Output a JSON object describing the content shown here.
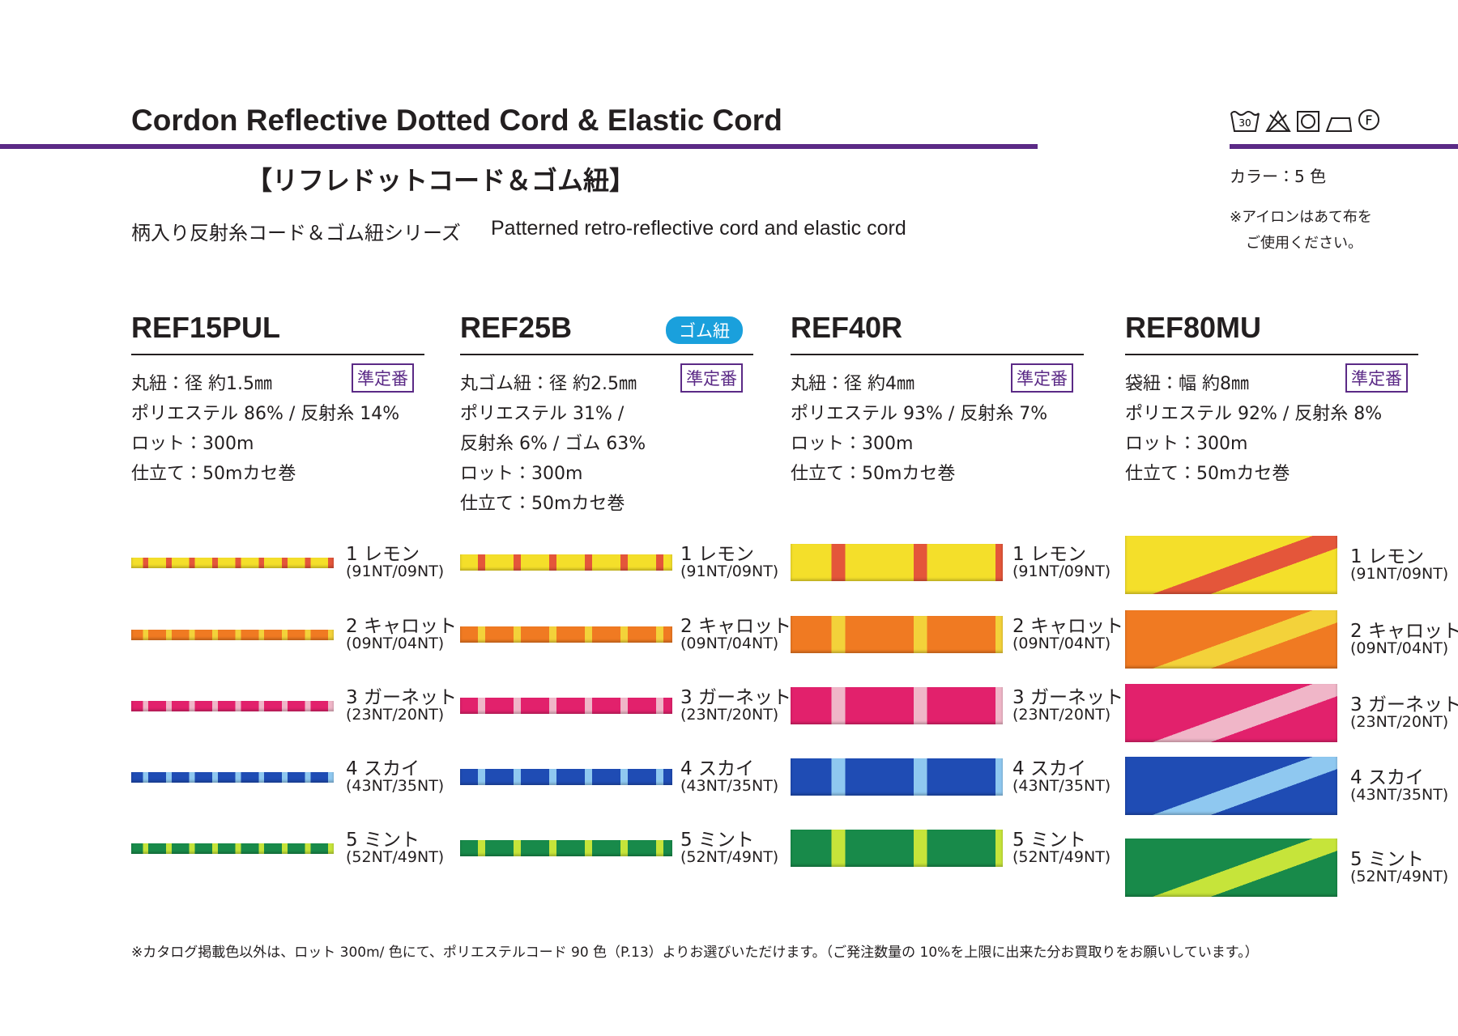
{
  "header": {
    "title": "Cordon Reflective Dotted Cord & Elastic Cord",
    "subtitle_jp": "【リフレドットコード＆ゴム紐】",
    "series_jp": "柄入り反射糸コード＆ゴム紐シリーズ",
    "series_en": "Patterned retro-reflective cord and elastic cord"
  },
  "care_labels": {
    "wash_temp": "30",
    "dry_clean": "F"
  },
  "sidebar": {
    "colors": "カラー：5 色",
    "note": [
      "※アイロンはあて布を",
      "ご使用ください。"
    ]
  },
  "products": [
    {
      "code": "REF15PUL",
      "tag": "準定番",
      "specs": [
        "丸紐：径 約1.5㎜",
        "ポリエステル 86% / 反射糸 14%",
        "ロット：300m",
        "仕立て：50mカセ巻"
      ],
      "colors": [
        {
          "name": "1 レモン",
          "code": "(91NT/09NT)"
        },
        {
          "name": "2 キャロット",
          "code": "(09NT/04NT)"
        },
        {
          "name": "3 ガーネット",
          "code": "(23NT/20NT)"
        },
        {
          "name": "4 スカイ",
          "code": "(43NT/35NT)"
        },
        {
          "name": "5 ミント",
          "code": "(52NT/49NT)"
        }
      ]
    },
    {
      "code": "REF25B",
      "badge": "ゴム紐",
      "tag": "準定番",
      "specs": [
        "丸ゴム紐：径 約2.5㎜",
        "ポリエステル 31% /",
        "反射糸 6% / ゴム 63%",
        "ロット：300m",
        "仕立て：50mカセ巻"
      ],
      "colors": [
        {
          "name": "1 レモン",
          "code": "(91NT/09NT)"
        },
        {
          "name": "2 キャロット",
          "code": "(09NT/04NT)"
        },
        {
          "name": "3 ガーネット",
          "code": "(23NT/20NT)"
        },
        {
          "name": "4 スカイ",
          "code": "(43NT/35NT)"
        },
        {
          "name": "5 ミント",
          "code": "(52NT/49NT)"
        }
      ]
    },
    {
      "code": "REF40R",
      "tag": "準定番",
      "specs": [
        "丸紐：径 約4㎜",
        "ポリエステル 93% / 反射糸 7%",
        "ロット：300m",
        "仕立て：50mカセ巻"
      ],
      "colors": [
        {
          "name": "1 レモン",
          "code": "(91NT/09NT)"
        },
        {
          "name": "2 キャロット",
          "code": "(09NT/04NT)"
        },
        {
          "name": "3 ガーネット",
          "code": "(23NT/20NT)"
        },
        {
          "name": "4 スカイ",
          "code": "(43NT/35NT)"
        },
        {
          "name": "5 ミント",
          "code": "(52NT/49NT)"
        }
      ]
    },
    {
      "code": "REF80MU",
      "tag": "準定番",
      "specs": [
        "袋紐：幅 約8㎜",
        "ポリエステル 92% / 反射糸 8%",
        "ロット：300m",
        "仕立て：50mカセ巻"
      ],
      "colors": [
        {
          "name": "1 レモン",
          "code": "(91NT/09NT)"
        },
        {
          "name": "2 キャロット",
          "code": "(09NT/04NT)"
        },
        {
          "name": "3 ガーネット",
          "code": "(23NT/20NT)"
        },
        {
          "name": "4 スカイ",
          "code": "(43NT/35NT)"
        },
        {
          "name": "5 ミント",
          "code": "(52NT/49NT)"
        }
      ]
    }
  ],
  "footer": {
    "note": "※カタログ掲載色以外は、ロット 300m/ 色にて、ポリエステルコード 90 色（P.13）よりお選びいただけます。（ご発注数量の 10%を上限に出来た分お買取りをお願いしています。）"
  }
}
